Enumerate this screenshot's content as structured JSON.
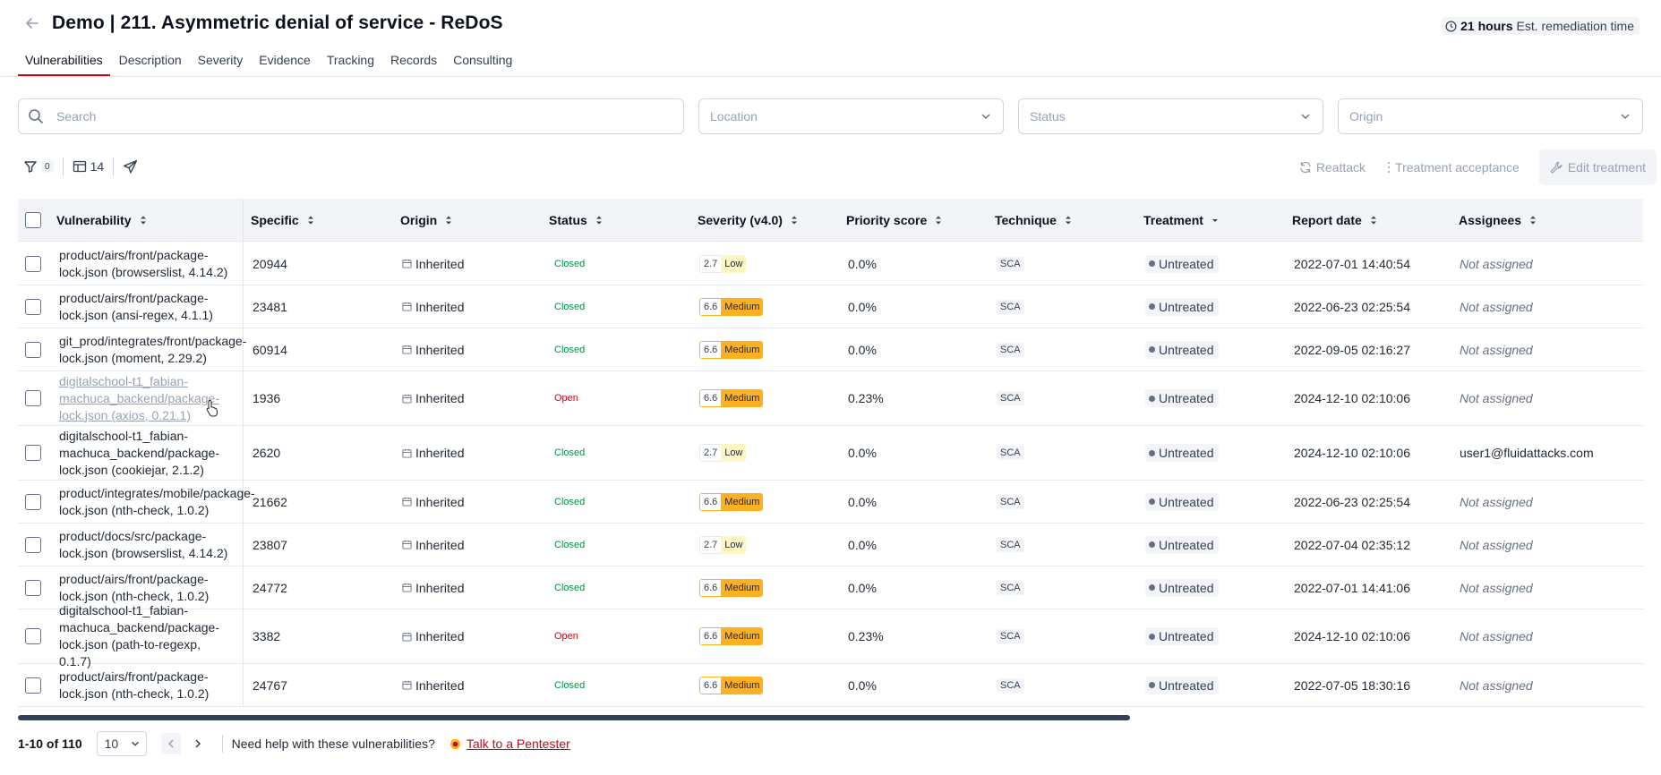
{
  "header": {
    "title": "Demo | 211. Asymmetric denial of service - ReDoS",
    "remediation_value": "21 hours",
    "remediation_label": "Est. remediation time"
  },
  "tabs": [
    {
      "label": "Vulnerabilities",
      "active": true
    },
    {
      "label": "Description"
    },
    {
      "label": "Severity"
    },
    {
      "label": "Evidence"
    },
    {
      "label": "Tracking"
    },
    {
      "label": "Records"
    },
    {
      "label": "Consulting"
    }
  ],
  "filters": {
    "search_placeholder": "Search",
    "location": "Location",
    "status": "Status",
    "origin": "Origin"
  },
  "toolbar": {
    "filter_count": "0",
    "columns_count": "14",
    "reattack": "Reattack",
    "treatment_acceptance": "Treatment acceptance",
    "edit_treatment": "Edit treatment"
  },
  "columns": [
    "Vulnerability",
    "Specific",
    "Origin",
    "Status",
    "Severity (v4.0)",
    "Priority score",
    "Technique",
    "Treatment",
    "Report date",
    "Assignees"
  ],
  "rows": [
    {
      "vuln": "product/airs/front/package-lock.json (browserslist, 4.14.2)",
      "specific": "20944",
      "origin": "Inherited",
      "status": "Closed",
      "sev_score": "2.7",
      "sev_label": "Low",
      "priority": "0.0%",
      "technique": "SCA",
      "treatment": "Untreated",
      "date": "2022-07-01 14:40:54",
      "assignee": "Not assigned"
    },
    {
      "vuln": "product/airs/front/package-lock.json (ansi-regex, 4.1.1)",
      "specific": "23481",
      "origin": "Inherited",
      "status": "Closed",
      "sev_score": "6.6",
      "sev_label": "Medium",
      "priority": "0.0%",
      "technique": "SCA",
      "treatment": "Untreated",
      "date": "2022-06-23 02:25:54",
      "assignee": "Not assigned"
    },
    {
      "vuln": "git_prod/integrates/front/package-lock.json (moment, 2.29.2)",
      "specific": "60914",
      "origin": "Inherited",
      "status": "Closed",
      "sev_score": "6.6",
      "sev_label": "Medium",
      "priority": "0.0%",
      "technique": "SCA",
      "treatment": "Untreated",
      "date": "2022-09-05 02:16:27",
      "assignee": "Not assigned"
    },
    {
      "vuln": "digitalschool-t1_fabian-machuca_backend/package-lock.json (axios, 0.21.1)",
      "specific": "1936",
      "origin": "Inherited",
      "status": "Open",
      "sev_score": "6.6",
      "sev_label": "Medium",
      "priority": "0.23%",
      "technique": "SCA",
      "treatment": "Untreated",
      "date": "2024-12-10 02:10:06",
      "assignee": "Not assigned"
    },
    {
      "vuln": "digitalschool-t1_fabian-machuca_backend/package-lock.json (cookiejar, 2.1.2)",
      "specific": "2620",
      "origin": "Inherited",
      "status": "Closed",
      "sev_score": "2.7",
      "sev_label": "Low",
      "priority": "0.0%",
      "technique": "SCA",
      "treatment": "Untreated",
      "date": "2024-12-10 02:10:06",
      "assignee": "user1@fluidattacks.com"
    },
    {
      "vuln": "product/integrates/mobile/package-lock.json (nth-check, 1.0.2)",
      "specific": "21662",
      "origin": "Inherited",
      "status": "Closed",
      "sev_score": "6.6",
      "sev_label": "Medium",
      "priority": "0.0%",
      "technique": "SCA",
      "treatment": "Untreated",
      "date": "2022-06-23 02:25:54",
      "assignee": "Not assigned"
    },
    {
      "vuln": "product/docs/src/package-lock.json (browserslist, 4.14.2)",
      "specific": "23807",
      "origin": "Inherited",
      "status": "Closed",
      "sev_score": "2.7",
      "sev_label": "Low",
      "priority": "0.0%",
      "technique": "SCA",
      "treatment": "Untreated",
      "date": "2022-07-04 02:35:12",
      "assignee": "Not assigned"
    },
    {
      "vuln": "product/airs/front/package-lock.json (nth-check, 1.0.2)",
      "specific": "24772",
      "origin": "Inherited",
      "status": "Closed",
      "sev_score": "6.6",
      "sev_label": "Medium",
      "priority": "0.0%",
      "technique": "SCA",
      "treatment": "Untreated",
      "date": "2022-07-01 14:41:06",
      "assignee": "Not assigned"
    },
    {
      "vuln": "digitalschool-t1_fabian-machuca_backend/package-lock.json (path-to-regexp, 0.1.7)",
      "specific": "3382",
      "origin": "Inherited",
      "status": "Open",
      "sev_score": "6.6",
      "sev_label": "Medium",
      "priority": "0.23%",
      "technique": "SCA",
      "treatment": "Untreated",
      "date": "2024-12-10 02:10:06",
      "assignee": "Not assigned"
    },
    {
      "vuln": "product/airs/front/package-lock.json (nth-check, 1.0.2)",
      "specific": "24767",
      "origin": "Inherited",
      "status": "Closed",
      "sev_score": "6.6",
      "sev_label": "Medium",
      "priority": "0.0%",
      "technique": "SCA",
      "treatment": "Untreated",
      "date": "2022-07-05 18:30:16",
      "assignee": "Not assigned"
    }
  ],
  "footer": {
    "range": "1-10 of 110",
    "page_size": "10",
    "help_text": "Need help with these vulnerabilities?",
    "talk_link": "Talk to a Pentester"
  },
  "colors": {
    "accent": "#bf0b1a",
    "closed": "#009245",
    "medium": "#fdb022",
    "low": "#fef7c3"
  }
}
